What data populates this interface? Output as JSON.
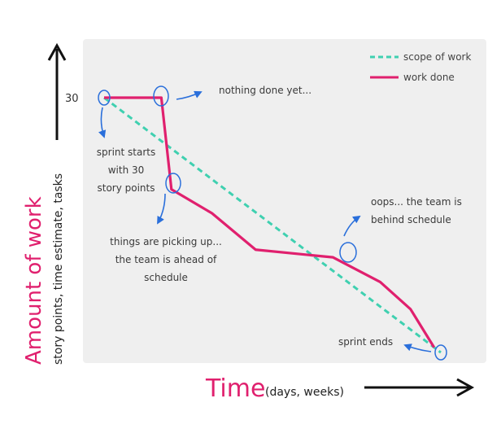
{
  "colors": {
    "scope": "#3fd0b0",
    "work": "#e0206e",
    "annotation_arrow": "#2a6fdb",
    "axis": "#111111",
    "plot_bg": "#efefef",
    "label_accent": "#e0206e"
  },
  "chart_data": {
    "type": "line",
    "ylabel_main": "Amount of work",
    "ylabel_sub": "story points, time estimate, tasks",
    "xlabel_main": "Time",
    "xlabel_sub": "(days, weeks)",
    "y_tick_label": "30",
    "y_tick_value": 30,
    "ylim": [
      0,
      30
    ],
    "xlim": [
      0,
      10
    ],
    "legend_position": "top-right",
    "series": [
      {
        "name": "scope of work",
        "style": "dashed",
        "x": [
          0,
          10
        ],
        "y": [
          30,
          0
        ]
      },
      {
        "name": "work done",
        "style": "solid",
        "x": [
          0,
          1.7,
          2.0,
          3.2,
          4.5,
          6.8,
          8.2,
          9.1,
          9.8
        ],
        "y": [
          30,
          30,
          19.2,
          16.4,
          12.1,
          11.2,
          8.3,
          5.1,
          0.6
        ]
      }
    ],
    "annotations": [
      "nothing done yet...",
      "sprint starts",
      "with 30",
      "story points",
      "things are picking up...",
      "the team is ahead of",
      "schedule",
      "oops... the team is",
      "behind schedule",
      "sprint ends"
    ]
  }
}
